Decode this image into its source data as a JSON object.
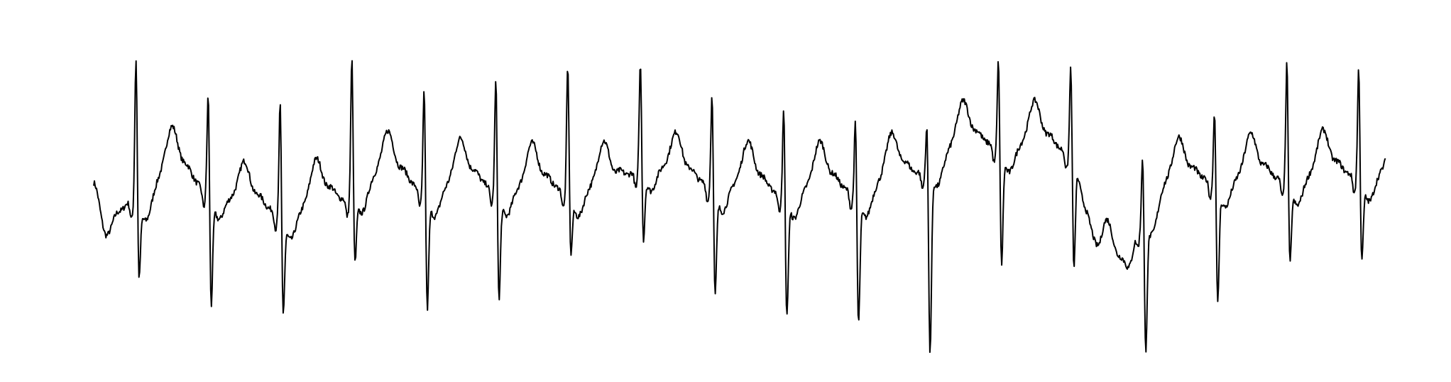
{
  "chart_data": {
    "type": "line",
    "line_color": "#000000",
    "background": "#ffffff",
    "axes_visible": false,
    "grid": false,
    "ylim": [
      -1,
      1
    ],
    "beats": [
      {
        "r_time": 0.0328,
        "r_amp": 0.893,
        "s_amp": -0.516
      },
      {
        "r_time": 0.0887,
        "r_amp": 0.692,
        "s_amp": -0.665
      },
      {
        "r_time": 0.1444,
        "r_amp": 0.631,
        "s_amp": -0.715
      },
      {
        "r_time": 0.1999,
        "r_amp": 0.892,
        "s_amp": -0.423
      },
      {
        "r_time": 0.2559,
        "r_amp": 0.729,
        "s_amp": -0.688
      },
      {
        "r_time": 0.3114,
        "r_amp": 0.786,
        "s_amp": -0.639
      },
      {
        "r_time": 0.367,
        "r_amp": 0.839,
        "s_amp": -0.352
      },
      {
        "r_time": 0.4232,
        "r_amp": 0.865,
        "s_amp": -0.272
      },
      {
        "r_time": 0.4787,
        "r_amp": 0.693,
        "s_amp": -0.606
      },
      {
        "r_time": 0.5342,
        "r_amp": 0.6,
        "s_amp": -0.741
      },
      {
        "r_time": 0.5897,
        "r_amp": 0.527,
        "s_amp": -0.776
      },
      {
        "r_time": 0.6451,
        "r_amp": 0.517,
        "s_amp": -0.958
      },
      {
        "r_time": 0.7004,
        "r_amp": 0.91,
        "s_amp": -0.41
      },
      {
        "r_time": 0.7564,
        "r_amp": 0.87,
        "s_amp": -0.442
      },
      {
        "r_time": 0.812,
        "r_amp": 0.315,
        "s_amp": -0.965
      },
      {
        "r_time": 0.8677,
        "r_amp": 0.584,
        "s_amp": -0.65
      },
      {
        "r_time": 0.9236,
        "r_amp": 0.874,
        "s_amp": -0.413
      },
      {
        "r_time": 0.9792,
        "r_amp": 0.844,
        "s_amp": -0.398
      }
    ],
    "baseline": [
      {
        "t": 0.0,
        "y": 0.05
      },
      {
        "t": 0.01,
        "y": -0.28
      },
      {
        "t": 0.03,
        "y": -0.05
      },
      {
        "t": 0.06,
        "y": 0.12
      },
      {
        "t": 0.09,
        "y": 0.02
      },
      {
        "t": 0.12,
        "y": -0.1
      },
      {
        "t": 0.15,
        "y": -0.12
      },
      {
        "t": 0.19,
        "y": -0.05
      },
      {
        "t": 0.22,
        "y": 0.1
      },
      {
        "t": 0.26,
        "y": 0.02
      },
      {
        "t": 0.29,
        "y": 0.05
      },
      {
        "t": 0.33,
        "y": 0.02
      },
      {
        "t": 0.37,
        "y": 0.02
      },
      {
        "t": 0.4,
        "y": 0.03
      },
      {
        "t": 0.43,
        "y": 0.18
      },
      {
        "t": 0.46,
        "y": 0.06
      },
      {
        "t": 0.49,
        "y": 0.05
      },
      {
        "t": 0.53,
        "y": 0.0
      },
      {
        "t": 0.56,
        "y": 0.03
      },
      {
        "t": 0.59,
        "y": 0.01
      },
      {
        "t": 0.63,
        "y": 0.1
      },
      {
        "t": 0.67,
        "y": 0.28
      },
      {
        "t": 0.7,
        "y": 0.3
      },
      {
        "t": 0.73,
        "y": 0.28
      },
      {
        "t": 0.76,
        "y": 0.25
      },
      {
        "t": 0.78,
        "y": -0.45
      },
      {
        "t": 0.8,
        "y": -0.5
      },
      {
        "t": 0.81,
        "y": -0.2
      },
      {
        "t": 0.83,
        "y": 0.05
      },
      {
        "t": 0.87,
        "y": 0.08
      },
      {
        "t": 0.91,
        "y": 0.08
      },
      {
        "t": 0.95,
        "y": 0.1
      },
      {
        "t": 1.0,
        "y": 0.12
      }
    ]
  }
}
